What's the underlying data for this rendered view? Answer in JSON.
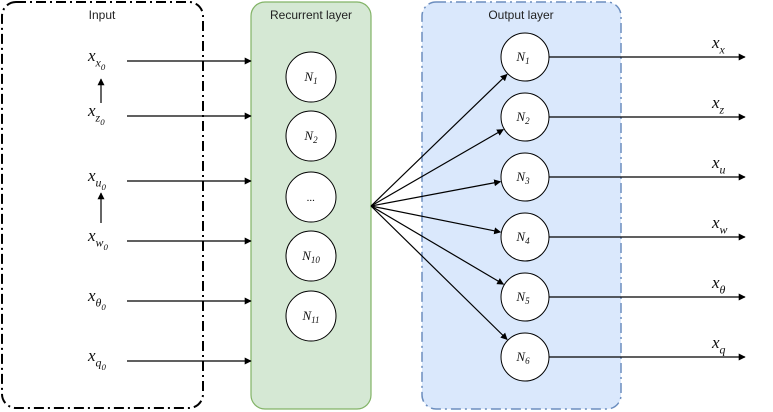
{
  "colors": {
    "input_border": "#000000",
    "recurrent_fill": "#d5e8d4",
    "recurrent_border": "#82b366",
    "output_fill": "#dae8fc",
    "output_border": "#6c8ebf",
    "edge": "#000000"
  },
  "panels": {
    "input": {
      "title": "Input"
    },
    "recurrent": {
      "title": "Recurrent layer"
    },
    "output": {
      "title": "Output layer"
    }
  },
  "inputs": [
    {
      "base": "x",
      "sub": "x",
      "sub2": "0"
    },
    {
      "base": "x",
      "sub": "z",
      "sub2": "0"
    },
    {
      "base": "x",
      "sub": "u",
      "sub2": "0"
    },
    {
      "base": "x",
      "sub": "w",
      "sub2": "0"
    },
    {
      "base": "x",
      "sub": "θ",
      "sub2": "0"
    },
    {
      "base": "x",
      "sub": "q",
      "sub2": "0"
    }
  ],
  "recurrent_neurons": [
    {
      "base": "N",
      "sub": "1"
    },
    {
      "base": "N",
      "sub": "2"
    },
    {
      "base": "...",
      "sub": ""
    },
    {
      "base": "N",
      "sub": "10"
    },
    {
      "base": "N",
      "sub": "11"
    }
  ],
  "output_neurons": [
    {
      "base": "N",
      "sub": "1"
    },
    {
      "base": "N",
      "sub": "2"
    },
    {
      "base": "N",
      "sub": "3"
    },
    {
      "base": "N",
      "sub": "4"
    },
    {
      "base": "N",
      "sub": "5"
    },
    {
      "base": "N",
      "sub": "6"
    }
  ],
  "outputs": [
    {
      "base": "x",
      "sub": "x"
    },
    {
      "base": "x",
      "sub": "z"
    },
    {
      "base": "x",
      "sub": "u"
    },
    {
      "base": "x",
      "sub": "w"
    },
    {
      "base": "x",
      "sub": "θ"
    },
    {
      "base": "x",
      "sub": "q"
    }
  ]
}
